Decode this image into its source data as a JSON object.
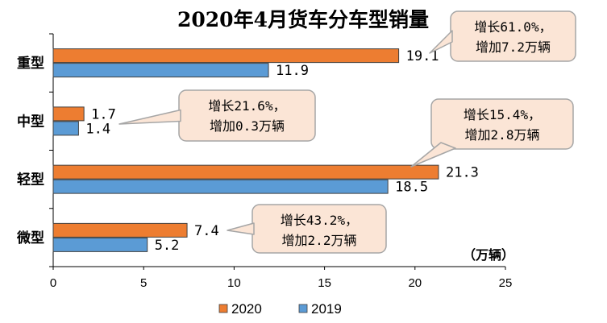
{
  "chart_data": {
    "type": "bar",
    "orientation": "horizontal",
    "title": "2020年4月货车分车型销量",
    "categories": [
      "重型",
      "中型",
      "轻型",
      "微型"
    ],
    "series": [
      {
        "name": "2020",
        "values": [
          19.1,
          1.7,
          21.3,
          7.4
        ],
        "color": "#ED7D31"
      },
      {
        "name": "2019",
        "values": [
          11.9,
          1.4,
          18.5,
          5.2
        ],
        "color": "#5B9BD5"
      }
    ],
    "value_labels": [
      [
        "19.1",
        "1.7",
        "21.3",
        "7.4"
      ],
      [
        "11.9",
        "1.4",
        "18.5",
        "5.2"
      ]
    ],
    "xlim": [
      0,
      25
    ],
    "xticks": [
      "0",
      "5",
      "10",
      "15",
      "20",
      "25"
    ],
    "unit_label": "（万辆）",
    "legend_position": "bottom",
    "grid": false,
    "annotations": [
      {
        "category": "重型",
        "line1": "增长61.0%，",
        "line2": "增加7.2万辆"
      },
      {
        "category": "中型",
        "line1": "增长21.6%，",
        "line2": "增加0.3万辆"
      },
      {
        "category": "轻型",
        "line1": "增长15.4%，",
        "line2": "增加2.8万辆"
      },
      {
        "category": "微型",
        "line1": "增长43.2%，",
        "line2": "增加2.2万辆"
      }
    ],
    "annotation_fill": "#FBE5D6",
    "annotation_stroke": "#A6A6A6"
  }
}
